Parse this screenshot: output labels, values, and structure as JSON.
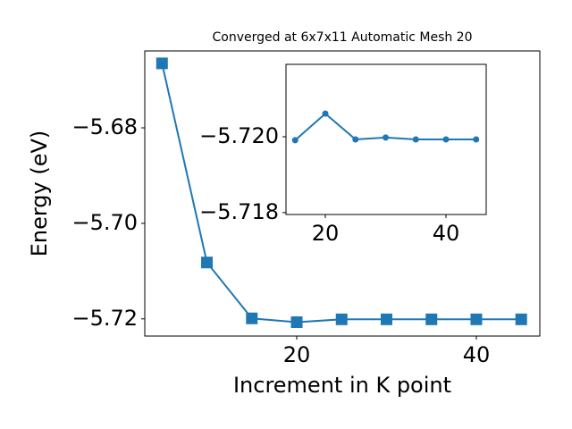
{
  "chart_data": [
    {
      "type": "line",
      "title": "Converged at 6x7x11 Automatic Mesh 20",
      "xlabel": "Increment in K point",
      "ylabel": "Energy (eV)",
      "x": [
        5,
        10,
        15,
        20,
        25,
        30,
        35,
        40,
        45
      ],
      "series": [
        {
          "name": "energy",
          "color": "#1f77b4",
          "marker": "square",
          "values": [
            -5.6665,
            -5.7082,
            -5.7199,
            -5.7207,
            -5.7201,
            -5.7201,
            -5.7201,
            -5.7201,
            -5.7201
          ]
        }
      ],
      "xlim": [
        3.08,
        47.07
      ],
      "ylim": [
        -5.7236,
        -5.6639
      ],
      "xticks": [
        20,
        40
      ],
      "yticks": [
        {
          "value": -5.72,
          "label": "−5.72"
        },
        {
          "value": -5.7,
          "label": "−5.70"
        },
        {
          "value": -5.68,
          "label": "−5.68"
        }
      ]
    },
    {
      "type": "line",
      "x": [
        15,
        20,
        25,
        30,
        35,
        40,
        45
      ],
      "series": [
        {
          "name": "inset",
          "color": "#1f77b4",
          "marker": "circle",
          "values": [
            -5.71991,
            -5.72061,
            -5.71993,
            -5.71998,
            -5.71993,
            -5.71993,
            -5.71993
          ]
        }
      ],
      "xlim": [
        13.48,
        46.67
      ],
      "ylim": [
        -5.71795,
        -5.72191
      ],
      "xticks": [
        20,
        40
      ],
      "yticks": [
        {
          "value": -5.72,
          "label": "−5.720"
        },
        {
          "value": -5.718,
          "label": "−5.718"
        }
      ]
    }
  ]
}
